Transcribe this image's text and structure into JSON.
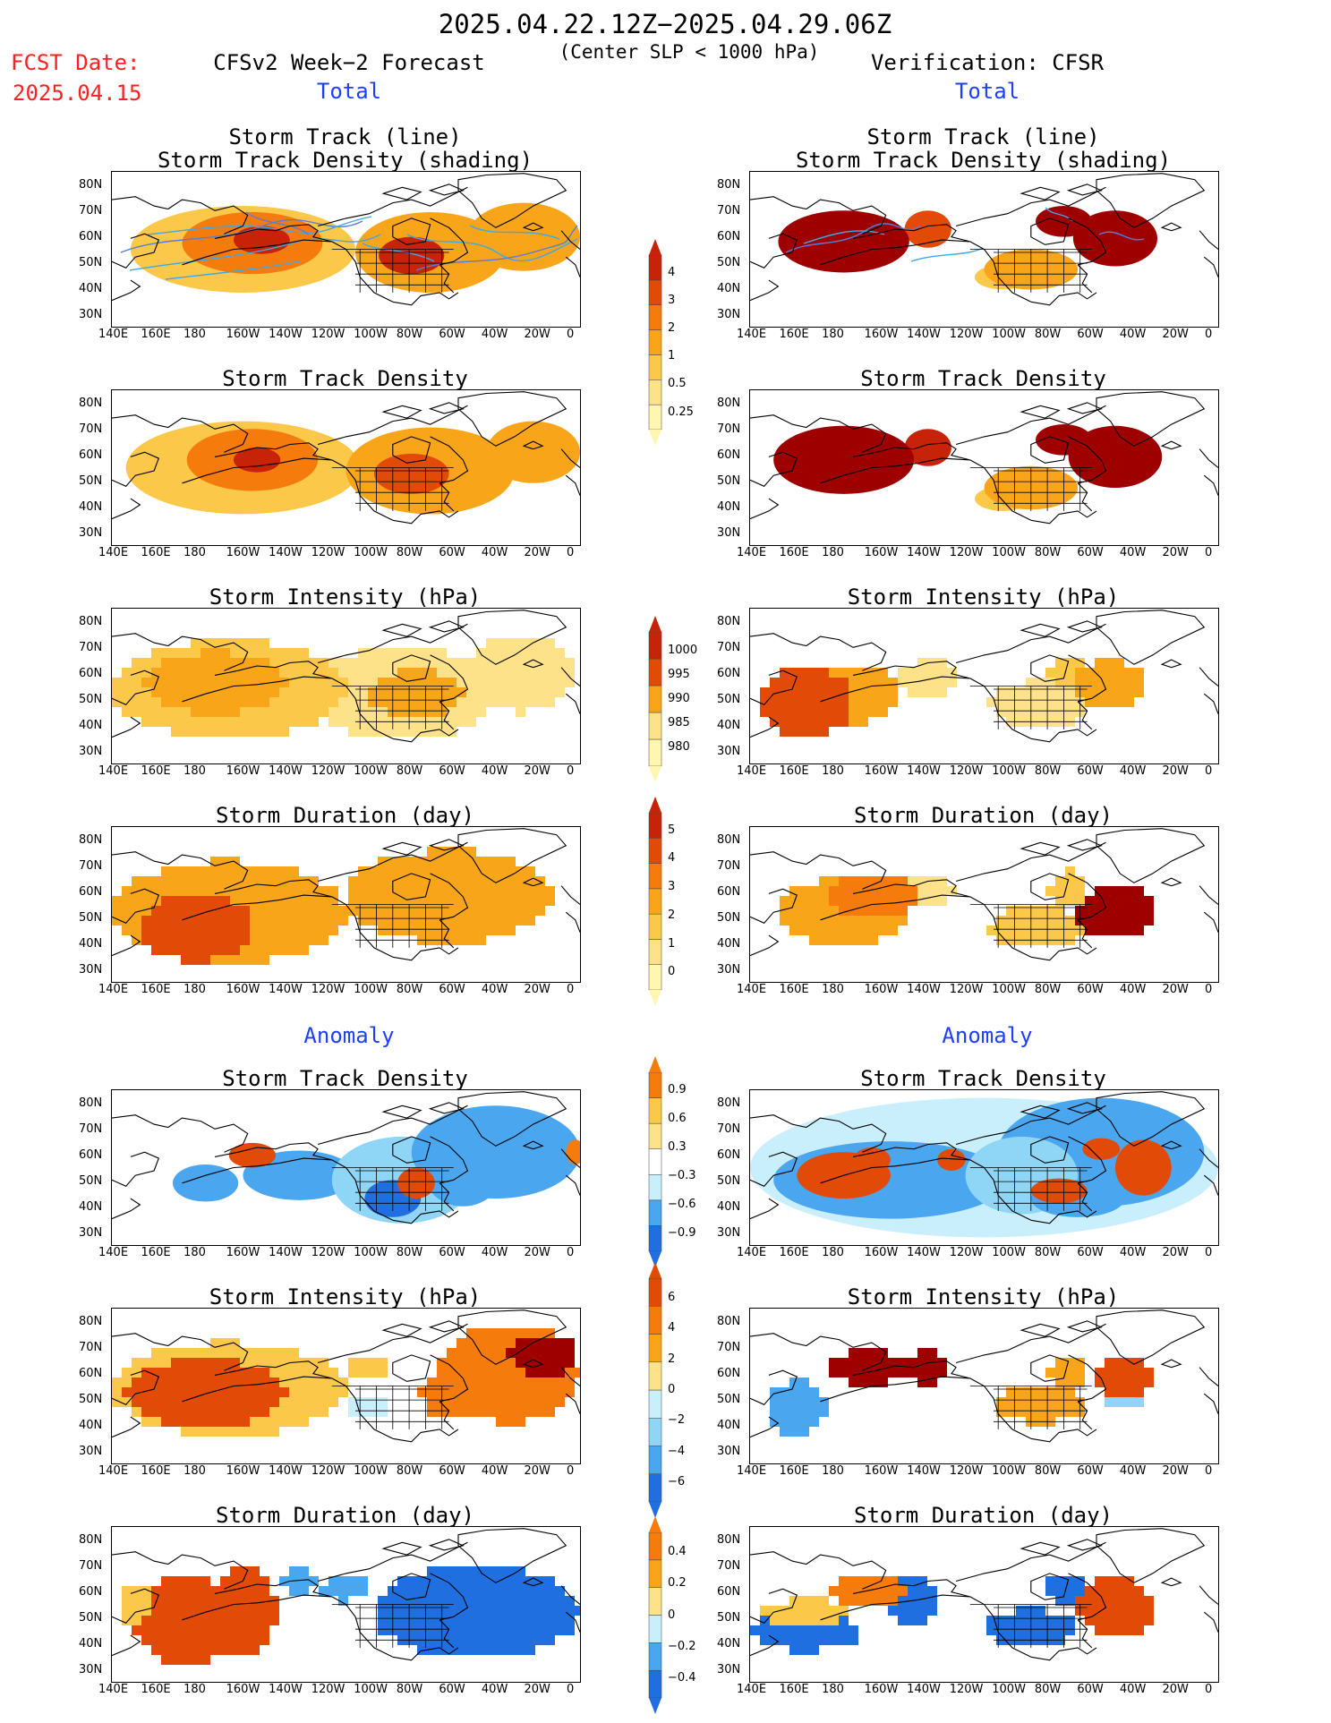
{
  "header": {
    "period": "2025.04.22.12Z−2025.04.29.06Z",
    "center_slp": "(Center SLP < 1000 hPa)",
    "fcst_label": "FCST Date:",
    "fcst_date": "2025.04.15",
    "left_model": "CFSv2 Week−2 Forecast",
    "right_model": "Verification: CFSR"
  },
  "section_labels": {
    "total": "Total",
    "anomaly": "Anomaly"
  },
  "panel_titles": {
    "track_line": "Storm Track (line)",
    "track_density_shading": "Storm Track Density (shading)",
    "track_density": "Storm Track Density",
    "intensity": "Storm Intensity (hPa)",
    "duration": "Storm Duration (day)"
  },
  "axes": {
    "lat_labels": [
      "80N",
      "70N",
      "60N",
      "50N",
      "40N",
      "30N"
    ],
    "lon_labels": [
      "140E",
      "160E",
      "180",
      "160W",
      "140W",
      "120W",
      "100W",
      "80W",
      "60W",
      "40W",
      "20W",
      "0"
    ]
  },
  "colorbars": {
    "density": [
      "4",
      "3",
      "2",
      "1",
      "0.5",
      "0.25"
    ],
    "intensity": [
      "1000",
      "995",
      "990",
      "985",
      "980"
    ],
    "duration": [
      "5",
      "4",
      "3",
      "2",
      "1",
      "0"
    ],
    "anom_density": [
      "0.9",
      "0.6",
      "0.3",
      "−0.3",
      "−0.6",
      "−0.9"
    ],
    "anom_intensity": [
      "6",
      "4",
      "2",
      "0",
      "−2",
      "−4",
      "−6"
    ],
    "anom_duration": [
      "0.4",
      "0.2",
      "0",
      "−0.2",
      "−0.4"
    ]
  },
  "colors": {
    "warm": [
      "#fff7b0",
      "#fde28a",
      "#fcc84a",
      "#f9a51a",
      "#f57c0c",
      "#e14a07",
      "#c72309",
      "#9e0000"
    ],
    "cool": [
      "#ffffff",
      "#c9eefc",
      "#8fd5f6",
      "#4aa6ef",
      "#1f6fe0"
    ],
    "track_line": "#42a6e8",
    "track_line_strong": "#5a7bd8"
  }
}
